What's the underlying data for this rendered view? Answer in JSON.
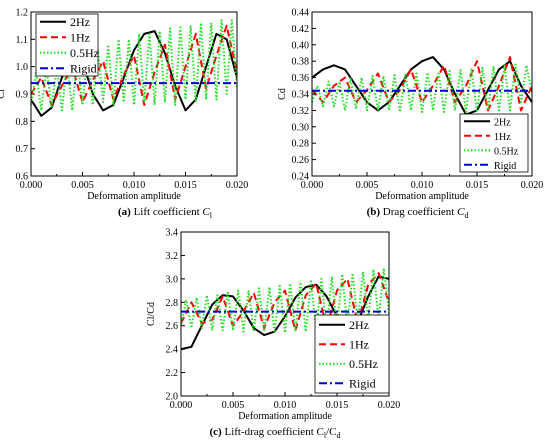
{
  "chart_data": [
    {
      "type": "line",
      "panel_label": "(a)",
      "caption_text": "Lift coefficient",
      "caption_symbol": "C",
      "caption_sub": "l",
      "xlabel": "Deformation amplitude",
      "ylabel": "Cl",
      "xlim": [
        0.0,
        0.02
      ],
      "ylim": [
        0.6,
        1.2
      ],
      "xticks": [
        "0.000",
        "0.005",
        "0.010",
        "0.015",
        "0.020"
      ],
      "yticks": [
        "0.6",
        "0.7",
        "0.8",
        "0.9",
        "1.0",
        "1.1",
        "1.2"
      ],
      "legend_position": "top-left",
      "series": [
        {
          "name": "2Hz",
          "color": "#000000",
          "style": "solid",
          "x": [
            0,
            0.001,
            0.002,
            0.003,
            0.004,
            0.005,
            0.006,
            0.007,
            0.008,
            0.009,
            0.01,
            0.011,
            0.012,
            0.013,
            0.014,
            0.015,
            0.016,
            0.017,
            0.018,
            0.019,
            0.02
          ],
          "y": [
            0.88,
            0.82,
            0.85,
            0.96,
            1.04,
            1.02,
            0.9,
            0.84,
            0.86,
            0.96,
            1.06,
            1.12,
            1.13,
            1.05,
            0.93,
            0.84,
            0.88,
            1.0,
            1.12,
            1.1,
            0.96
          ]
        },
        {
          "name": "1Hz",
          "color": "#ff0000",
          "style": "dashed",
          "x": [
            0,
            0.001,
            0.002,
            0.003,
            0.004,
            0.005,
            0.006,
            0.007,
            0.008,
            0.009,
            0.01,
            0.011,
            0.012,
            0.013,
            0.014,
            0.015,
            0.016,
            0.017,
            0.018,
            0.019,
            0.02
          ],
          "y": [
            0.9,
            0.96,
            0.86,
            0.93,
            1.0,
            0.87,
            0.95,
            1.02,
            0.88,
            0.97,
            1.04,
            0.86,
            0.98,
            1.08,
            0.88,
            1.0,
            1.12,
            0.92,
            1.04,
            1.15,
            0.98
          ]
        },
        {
          "name": "0.5Hz",
          "color": "#22dd22",
          "style": "dotted",
          "x": [
            0,
            0.0005,
            0.001,
            0.0015,
            0.002,
            0.0025,
            0.003,
            0.0035,
            0.004,
            0.0045,
            0.005,
            0.0055,
            0.006,
            0.0065,
            0.007,
            0.0075,
            0.008,
            0.0085,
            0.009,
            0.0095,
            0.01,
            0.0105,
            0.011,
            0.0115,
            0.012,
            0.0125,
            0.013,
            0.0135,
            0.014,
            0.0145,
            0.015,
            0.0155,
            0.016,
            0.0165,
            0.017,
            0.0175,
            0.018,
            0.0185,
            0.019,
            0.0195,
            0.02
          ],
          "y": [
            0.86,
            0.98,
            0.84,
            1.0,
            0.85,
            1.0,
            0.84,
            1.02,
            0.84,
            1.03,
            0.86,
            1.05,
            0.86,
            1.06,
            0.87,
            1.08,
            0.86,
            1.1,
            0.87,
            1.1,
            0.86,
            1.12,
            0.87,
            1.12,
            0.86,
            1.13,
            0.87,
            1.14,
            0.86,
            1.15,
            0.88,
            1.15,
            0.87,
            1.16,
            0.88,
            1.16,
            0.88,
            1.17,
            0.9,
            1.17,
            0.92
          ]
        },
        {
          "name": "Rigid",
          "color": "#0000cc",
          "style": "dashdot",
          "x": [
            0,
            0.02
          ],
          "y": [
            0.94,
            0.94
          ]
        }
      ]
    },
    {
      "type": "line",
      "panel_label": "(b)",
      "caption_text": "Drag coefficient",
      "caption_symbol": "C",
      "caption_sub": "d",
      "xlabel": "Deformation amplitude",
      "ylabel": "Cd",
      "xlim": [
        0.0,
        0.02
      ],
      "ylim": [
        0.24,
        0.44
      ],
      "xticks": [
        "0.000",
        "0.005",
        "0.010",
        "0.015",
        "0.020"
      ],
      "yticks": [
        "0.24",
        "0.26",
        "0.28",
        "0.30",
        "0.32",
        "0.34",
        "0.36",
        "0.38",
        "0.40",
        "0.42",
        "0.44"
      ],
      "legend_position": "bottom-right",
      "series": [
        {
          "name": "2Hz",
          "color": "#000000",
          "style": "solid",
          "x": [
            0,
            0.001,
            0.002,
            0.003,
            0.004,
            0.005,
            0.006,
            0.007,
            0.008,
            0.009,
            0.01,
            0.011,
            0.012,
            0.013,
            0.014,
            0.015,
            0.016,
            0.017,
            0.018,
            0.019,
            0.02
          ],
          "y": [
            0.36,
            0.37,
            0.375,
            0.37,
            0.35,
            0.33,
            0.32,
            0.33,
            0.35,
            0.37,
            0.38,
            0.385,
            0.37,
            0.34,
            0.315,
            0.32,
            0.345,
            0.37,
            0.38,
            0.35,
            0.33
          ]
        },
        {
          "name": "1Hz",
          "color": "#ff0000",
          "style": "dashed",
          "x": [
            0,
            0.001,
            0.002,
            0.003,
            0.004,
            0.005,
            0.006,
            0.007,
            0.008,
            0.009,
            0.01,
            0.011,
            0.012,
            0.013,
            0.014,
            0.015,
            0.016,
            0.017,
            0.018,
            0.019,
            0.02
          ],
          "y": [
            0.345,
            0.33,
            0.35,
            0.36,
            0.33,
            0.345,
            0.365,
            0.33,
            0.345,
            0.37,
            0.33,
            0.35,
            0.375,
            0.33,
            0.35,
            0.38,
            0.32,
            0.35,
            0.385,
            0.32,
            0.35
          ]
        },
        {
          "name": "0.5Hz",
          "color": "#22dd22",
          "style": "dotted",
          "x": [
            0,
            0.0005,
            0.001,
            0.0015,
            0.002,
            0.0025,
            0.003,
            0.0035,
            0.004,
            0.0045,
            0.005,
            0.0055,
            0.006,
            0.0065,
            0.007,
            0.0075,
            0.008,
            0.0085,
            0.009,
            0.0095,
            0.01,
            0.0105,
            0.011,
            0.0115,
            0.012,
            0.0125,
            0.013,
            0.0135,
            0.014,
            0.0145,
            0.015,
            0.0155,
            0.016,
            0.0165,
            0.017,
            0.0175,
            0.018,
            0.0185,
            0.019,
            0.0195,
            0.02
          ],
          "y": [
            0.33,
            0.35,
            0.325,
            0.355,
            0.325,
            0.355,
            0.32,
            0.36,
            0.322,
            0.36,
            0.32,
            0.362,
            0.32,
            0.362,
            0.32,
            0.363,
            0.318,
            0.365,
            0.32,
            0.365,
            0.318,
            0.366,
            0.32,
            0.367,
            0.318,
            0.368,
            0.32,
            0.369,
            0.318,
            0.37,
            0.318,
            0.372,
            0.32,
            0.374,
            0.318,
            0.375,
            0.32,
            0.376,
            0.33,
            0.375,
            0.34
          ]
        },
        {
          "name": "Rigid",
          "color": "#0000cc",
          "style": "dashdot",
          "x": [
            0,
            0.02
          ],
          "y": [
            0.344,
            0.344
          ]
        }
      ]
    },
    {
      "type": "line",
      "panel_label": "(c)",
      "caption_text": "Lift-drag coefficient",
      "caption_symbol": "C",
      "caption_sub": "l",
      "caption_symbol2": "/C",
      "caption_sub2": "d",
      "xlabel": "Deformation amplitude",
      "ylabel": "Cl/Cd",
      "xlim": [
        0.0,
        0.02
      ],
      "ylim": [
        2.0,
        3.4
      ],
      "xticks": [
        "0.000",
        "0.005",
        "0.010",
        "0.015",
        "0.020"
      ],
      "yticks": [
        "2.0",
        "2.2",
        "2.4",
        "2.6",
        "2.8",
        "3.0",
        "3.2",
        "3.4"
      ],
      "legend_position": "bottom-right",
      "series": [
        {
          "name": "2Hz",
          "color": "#000000",
          "style": "solid",
          "x": [
            0,
            0.001,
            0.002,
            0.003,
            0.004,
            0.005,
            0.006,
            0.007,
            0.008,
            0.009,
            0.01,
            0.011,
            0.012,
            0.013,
            0.014,
            0.015,
            0.016,
            0.017,
            0.018,
            0.019,
            0.02
          ],
          "y": [
            2.4,
            2.42,
            2.6,
            2.78,
            2.86,
            2.85,
            2.73,
            2.58,
            2.52,
            2.55,
            2.68,
            2.84,
            2.93,
            2.95,
            2.85,
            2.68,
            2.58,
            2.63,
            2.85,
            3.02,
            3.0
          ]
        },
        {
          "name": "1Hz",
          "color": "#ff0000",
          "style": "dashed",
          "x": [
            0,
            0.001,
            0.002,
            0.003,
            0.004,
            0.005,
            0.006,
            0.007,
            0.008,
            0.009,
            0.01,
            0.011,
            0.012,
            0.013,
            0.014,
            0.015,
            0.016,
            0.017,
            0.018,
            0.019,
            0.02
          ],
          "y": [
            2.62,
            2.8,
            2.62,
            2.65,
            2.85,
            2.6,
            2.72,
            2.88,
            2.58,
            2.8,
            2.9,
            2.56,
            2.86,
            2.96,
            2.58,
            2.9,
            3.0,
            2.62,
            2.95,
            3.05,
            2.8
          ]
        },
        {
          "name": "0.5Hz",
          "color": "#22dd22",
          "style": "dotted",
          "x": [
            0,
            0.0005,
            0.001,
            0.0015,
            0.002,
            0.0025,
            0.003,
            0.0035,
            0.004,
            0.0045,
            0.005,
            0.0055,
            0.006,
            0.0065,
            0.007,
            0.0075,
            0.008,
            0.0085,
            0.009,
            0.0095,
            0.01,
            0.0105,
            0.011,
            0.0115,
            0.012,
            0.0125,
            0.013,
            0.0135,
            0.014,
            0.0145,
            0.015,
            0.0155,
            0.016,
            0.0165,
            0.017,
            0.0175,
            0.018,
            0.0185,
            0.019,
            0.0195,
            0.02
          ],
          "y": [
            2.6,
            2.82,
            2.58,
            2.84,
            2.58,
            2.86,
            2.56,
            2.86,
            2.56,
            2.88,
            2.56,
            2.9,
            2.55,
            2.9,
            2.55,
            2.92,
            2.55,
            2.93,
            2.54,
            2.94,
            2.54,
            2.96,
            2.55,
            2.97,
            2.55,
            2.98,
            2.56,
            3.0,
            2.56,
            3.02,
            2.58,
            3.04,
            2.6,
            3.05,
            2.62,
            3.06,
            2.64,
            3.08,
            2.66,
            3.09,
            2.7
          ]
        },
        {
          "name": "Rigid",
          "color": "#0000cc",
          "style": "dashdot",
          "x": [
            0,
            0.02
          ],
          "y": [
            2.72,
            2.72
          ]
        }
      ]
    }
  ]
}
